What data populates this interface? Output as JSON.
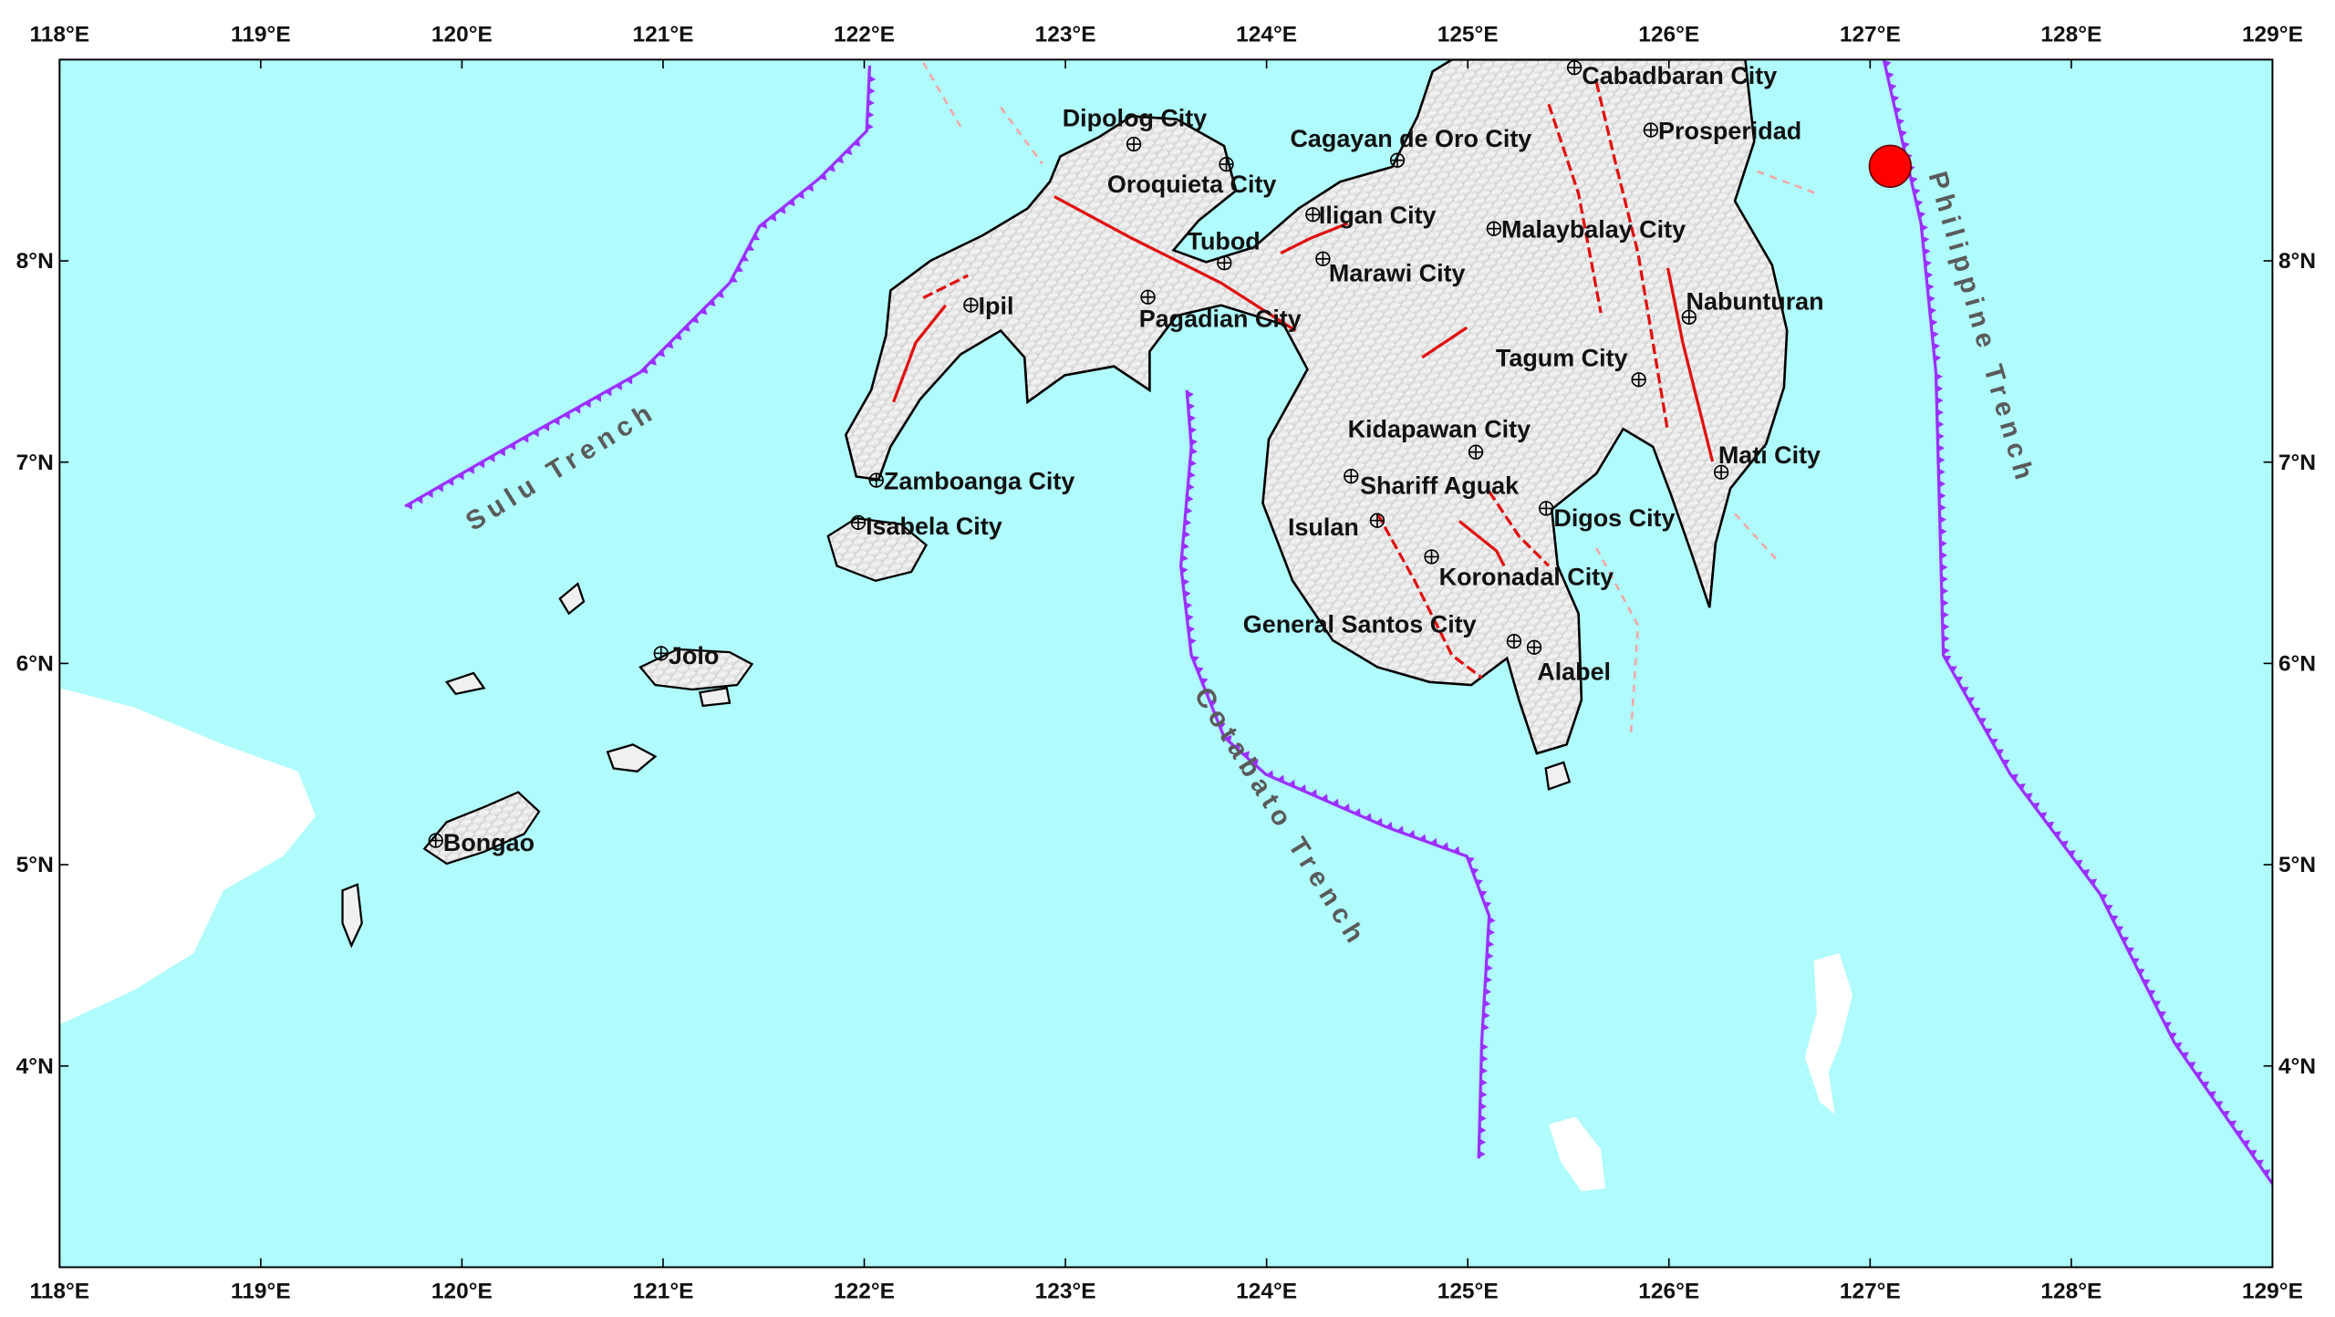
{
  "map": {
    "lon_range": [
      118,
      129
    ],
    "lat_range": [
      3,
      9
    ],
    "lon_ticks": [
      "118°E",
      "119°E",
      "120°E",
      "121°E",
      "122°E",
      "123°E",
      "124°E",
      "125°E",
      "126°E",
      "127°E",
      "128°E",
      "129°E"
    ],
    "lat_ticks": [
      {
        "lat": 4,
        "label": "4°N"
      },
      {
        "lat": 5,
        "label": "5°N"
      },
      {
        "lat": 6,
        "label": "6°N"
      },
      {
        "lat": 7,
        "label": "7°N"
      },
      {
        "lat": 8,
        "label": "8°N"
      }
    ],
    "colors": {
      "sea": "#b0fbfb",
      "land": "#ececec",
      "fault": "#e01010",
      "trench": "#9b30ff",
      "epicenter": "#ff0000",
      "trench_label": "#5a5a5a"
    },
    "epicenter": {
      "lon": 127.1,
      "lat": 8.47,
      "icon": "epicenter-circle"
    },
    "trenches": [
      {
        "name": "Sulu Trench"
      },
      {
        "name": "Cotabato Trench"
      },
      {
        "name": "Philippine Trench"
      }
    ],
    "cities": [
      {
        "name": "Dipolog City",
        "lon": 123.34,
        "lat": 8.58
      },
      {
        "name": "Oroquieta City",
        "lon": 123.8,
        "lat": 8.48
      },
      {
        "name": "Cagayan de Oro City",
        "lon": 124.65,
        "lat": 8.5
      },
      {
        "name": "Iligan City",
        "lon": 124.23,
        "lat": 8.23
      },
      {
        "name": "Tubod",
        "lon": 123.79,
        "lat": 7.99
      },
      {
        "name": "Marawi City",
        "lon": 124.28,
        "lat": 8.01
      },
      {
        "name": "Pagadian City",
        "lon": 123.41,
        "lat": 7.82
      },
      {
        "name": "Ipil",
        "lon": 122.53,
        "lat": 7.78
      },
      {
        "name": "Cabadbaran City",
        "lon": 125.53,
        "lat": 8.96
      },
      {
        "name": "Prosperidad",
        "lon": 125.91,
        "lat": 8.65
      },
      {
        "name": "Malaybalay City",
        "lon": 125.13,
        "lat": 8.16
      },
      {
        "name": "Nabunturan",
        "lon": 126.1,
        "lat": 7.72
      },
      {
        "name": "Tagum City",
        "lon": 125.85,
        "lat": 7.41
      },
      {
        "name": "Kidapawan City",
        "lon": 125.04,
        "lat": 7.05
      },
      {
        "name": "Shariff Aguak",
        "lon": 124.42,
        "lat": 6.93
      },
      {
        "name": "Isulan",
        "lon": 124.55,
        "lat": 6.71
      },
      {
        "name": "Koronadal City",
        "lon": 124.82,
        "lat": 6.53
      },
      {
        "name": "Digos City",
        "lon": 125.39,
        "lat": 6.77
      },
      {
        "name": "Mati City",
        "lon": 126.26,
        "lat": 6.95
      },
      {
        "name": "General Santos City",
        "lon": 125.23,
        "lat": 6.11
      },
      {
        "name": "Alabel",
        "lon": 125.33,
        "lat": 6.08
      },
      {
        "name": "Zamboanga City",
        "lon": 122.06,
        "lat": 6.91
      },
      {
        "name": "Isabela City",
        "lon": 121.97,
        "lat": 6.7
      },
      {
        "name": "Jolo",
        "lon": 120.99,
        "lat": 6.05
      },
      {
        "name": "Bongao",
        "lon": 119.87,
        "lat": 5.12
      }
    ]
  }
}
